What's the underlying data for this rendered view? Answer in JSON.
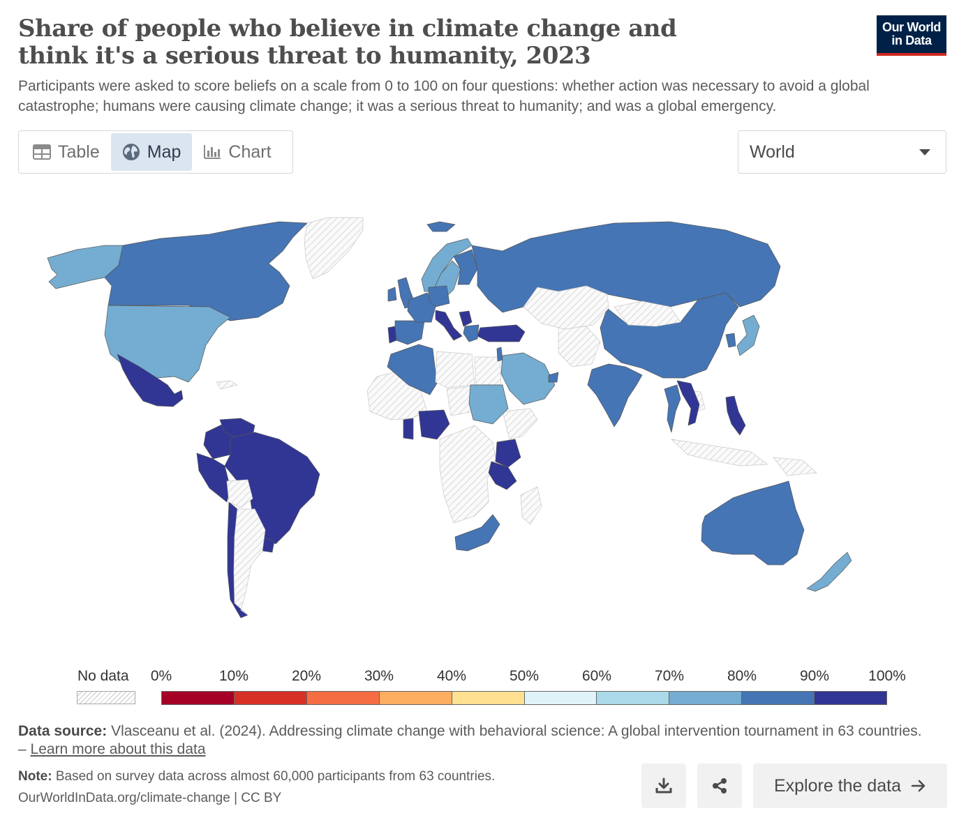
{
  "header": {
    "title": "Share of people who believe in climate change and think it's a serious threat to humanity, 2023",
    "subtitle": "Participants were asked to score beliefs on a scale from 0 to 100 on four questions: whether action was necessary to avoid a global catastrophe; humans were causing climate change; it was a serious threat to humanity; and was a global emergency.",
    "logo_line1": "Our World",
    "logo_line2": "in Data"
  },
  "tabs": [
    {
      "label": "Table",
      "icon": "table-icon",
      "active": false
    },
    {
      "label": "Map",
      "icon": "globe-icon",
      "active": true
    },
    {
      "label": "Chart",
      "icon": "chart-icon",
      "active": false
    }
  ],
  "region_select": {
    "value": "World"
  },
  "legend": {
    "no_data_label": "No data",
    "ticks": [
      "0%",
      "10%",
      "20%",
      "30%",
      "40%",
      "50%",
      "60%",
      "70%",
      "80%",
      "90%",
      "100%"
    ],
    "colors": [
      "#a50026",
      "#d73027",
      "#f46d43",
      "#fdae61",
      "#fee090",
      "#e0f3f8",
      "#abd9e9",
      "#74add1",
      "#4575b4",
      "#313695"
    ],
    "no_data_color": "#e8e8e8"
  },
  "footer": {
    "source_label": "Data source:",
    "source_text": "Vlasceanu et al. (2024). Addressing climate change with behavioral science: A global intervention tournament in 63 countries. –",
    "source_link": "Learn more about this data",
    "note_label": "Note:",
    "note_text": "Based on survey data across almost 60,000 participants from 63 countries.",
    "license": "OurWorldInData.org/climate-change | CC BY",
    "explore_label": "Explore the data",
    "download_icon": "download-icon",
    "share_icon": "share-icon"
  },
  "map_data": {
    "type": "choropleth",
    "year": 2023,
    "bins": [
      "0-10",
      "10-20",
      "20-30",
      "30-40",
      "40-50",
      "50-60",
      "60-70",
      "70-80",
      "80-90",
      "90-100"
    ],
    "countries": [
      {
        "name": "Canada",
        "bin": "80-90"
      },
      {
        "name": "United States",
        "bin": "70-80"
      },
      {
        "name": "Alaska",
        "bin": "70-80"
      },
      {
        "name": "Greenland",
        "bin": "no-data"
      },
      {
        "name": "Mexico",
        "bin": "90-100"
      },
      {
        "name": "Colombia",
        "bin": "90-100"
      },
      {
        "name": "Venezuela",
        "bin": "90-100"
      },
      {
        "name": "Peru",
        "bin": "90-100"
      },
      {
        "name": "Brazil",
        "bin": "90-100"
      },
      {
        "name": "Chile",
        "bin": "90-100"
      },
      {
        "name": "Uruguay",
        "bin": "90-100"
      },
      {
        "name": "Argentina",
        "bin": "no-data"
      },
      {
        "name": "Bolivia",
        "bin": "no-data"
      },
      {
        "name": "Iceland",
        "bin": "80-90"
      },
      {
        "name": "United Kingdom",
        "bin": "80-90"
      },
      {
        "name": "Ireland",
        "bin": "80-90"
      },
      {
        "name": "Norway",
        "bin": "70-80"
      },
      {
        "name": "Sweden",
        "bin": "70-80"
      },
      {
        "name": "Finland",
        "bin": "80-90"
      },
      {
        "name": "Portugal",
        "bin": "90-100"
      },
      {
        "name": "Spain",
        "bin": "80-90"
      },
      {
        "name": "France",
        "bin": "80-90"
      },
      {
        "name": "Germany",
        "bin": "80-90"
      },
      {
        "name": "Italy",
        "bin": "90-100"
      },
      {
        "name": "Greece",
        "bin": "80-90"
      },
      {
        "name": "Serbia",
        "bin": "90-100"
      },
      {
        "name": "Turkey",
        "bin": "90-100"
      },
      {
        "name": "Russia",
        "bin": "80-90"
      },
      {
        "name": "Algeria",
        "bin": "80-90"
      },
      {
        "name": "Libya",
        "bin": "no-data"
      },
      {
        "name": "Egypt",
        "bin": "no-data"
      },
      {
        "name": "Sudan",
        "bin": "70-80"
      },
      {
        "name": "Ghana",
        "bin": "90-100"
      },
      {
        "name": "Nigeria",
        "bin": "90-100"
      },
      {
        "name": "Kenya",
        "bin": "90-100"
      },
      {
        "name": "Tanzania",
        "bin": "90-100"
      },
      {
        "name": "South Africa",
        "bin": "80-90"
      },
      {
        "name": "Saudi Arabia",
        "bin": "70-80"
      },
      {
        "name": "Israel",
        "bin": "80-90"
      },
      {
        "name": "UAE",
        "bin": "80-90"
      },
      {
        "name": "India",
        "bin": "80-90"
      },
      {
        "name": "China",
        "bin": "80-90"
      },
      {
        "name": "South Korea",
        "bin": "80-90"
      },
      {
        "name": "Japan",
        "bin": "70-80"
      },
      {
        "name": "Thailand",
        "bin": "80-90"
      },
      {
        "name": "Vietnam",
        "bin": "90-100"
      },
      {
        "name": "Philippines",
        "bin": "90-100"
      },
      {
        "name": "Australia",
        "bin": "80-90"
      },
      {
        "name": "New Zealand",
        "bin": "70-80"
      },
      {
        "name": "Kazakhstan",
        "bin": "no-data"
      },
      {
        "name": "Mongolia",
        "bin": "no-data"
      },
      {
        "name": "Indonesia",
        "bin": "no-data"
      }
    ]
  }
}
